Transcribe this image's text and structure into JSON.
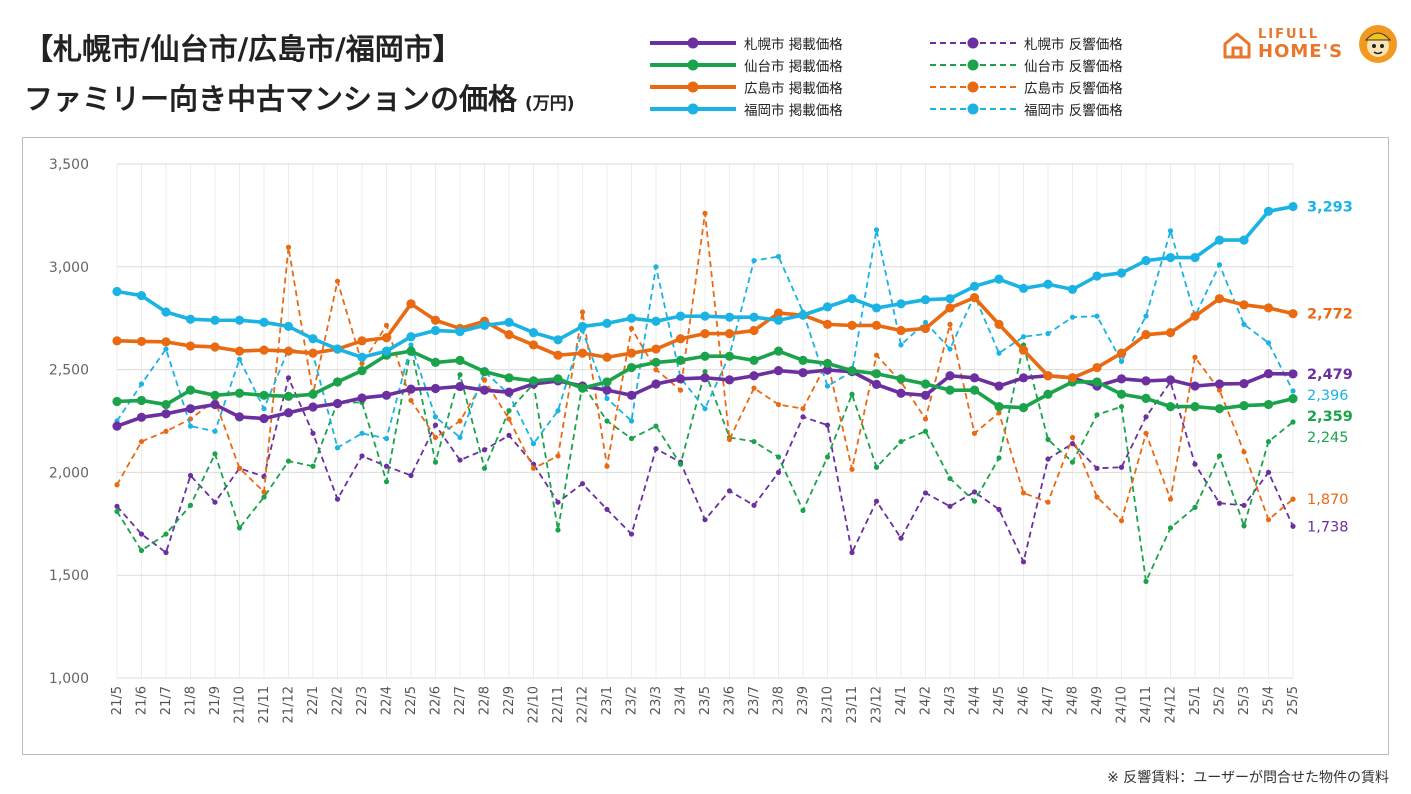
{
  "header": {
    "title_line1": "【札幌市/仙台市/広島市/福岡市】",
    "title_line2": "ファミリー向き中古マンションの価格",
    "unit": "(万円)"
  },
  "logo": {
    "line1": "LIFULL",
    "line2": "HOME'S",
    "icon": "house-icon"
  },
  "footnote": "※ 反響賃料：ユーザーが問合せた物件の賃料",
  "colors": {
    "sapporo": "#6b2fa0",
    "sendai": "#1aa34a",
    "hiroshima": "#ea6a12",
    "fukuoka": "#1ab3e3"
  },
  "legend": [
    {
      "label": "札幌市 掲載価格",
      "color": "#6b2fa0",
      "dashed": false
    },
    {
      "label": "仙台市 掲載価格",
      "color": "#1aa34a",
      "dashed": false
    },
    {
      "label": "広島市 掲載価格",
      "color": "#ea6a12",
      "dashed": false
    },
    {
      "label": "福岡市 掲載価格",
      "color": "#1ab3e3",
      "dashed": false
    },
    {
      "label": "札幌市 反響価格",
      "color": "#6b2fa0",
      "dashed": true
    },
    {
      "label": "仙台市 反響価格",
      "color": "#1aa34a",
      "dashed": true
    },
    {
      "label": "広島市 反響価格",
      "color": "#ea6a12",
      "dashed": true
    },
    {
      "label": "福岡市 反響価格",
      "color": "#1ab3e3",
      "dashed": true
    }
  ],
  "chart_data": {
    "type": "line",
    "title": "【札幌市/仙台市/広島市/福岡市】ファミリー向き中古マンションの価格",
    "ylabel": "(万円)",
    "ylim": [
      1000,
      3500
    ],
    "yticks": [
      1000,
      1500,
      2000,
      2500,
      3000,
      3500
    ],
    "ytick_labels": [
      "1,000",
      "1,500",
      "2,000",
      "2,500",
      "3,000",
      "3,500"
    ],
    "grid": true,
    "x": [
      "21/5",
      "21/6",
      "21/7",
      "21/8",
      "21/9",
      "21/10",
      "21/11",
      "21/12",
      "22/1",
      "22/2",
      "22/3",
      "22/4",
      "22/5",
      "22/6",
      "22/7",
      "22/8",
      "22/9",
      "22/10",
      "22/11",
      "22/12",
      "23/1",
      "23/2",
      "23/3",
      "23/4",
      "23/5",
      "23/6",
      "23/7",
      "23/8",
      "23/9",
      "23/10",
      "23/11",
      "23/12",
      "24/1",
      "24/2",
      "24/3",
      "24/4",
      "24/5",
      "24/6",
      "24/7",
      "24/8",
      "24/9",
      "24/10",
      "24/11",
      "24/12",
      "25/1",
      "25/2",
      "25/3",
      "25/4",
      "25/5"
    ],
    "series": [
      {
        "name": "札幌市 掲載価格",
        "color": "#6b2fa0",
        "dashed": false,
        "end_label": "2,479",
        "values": [
          2225,
          2268,
          2285,
          2310,
          2330,
          2270,
          2262,
          2290,
          2318,
          2335,
          2362,
          2375,
          2405,
          2408,
          2418,
          2400,
          2390,
          2430,
          2445,
          2420,
          2400,
          2375,
          2430,
          2455,
          2460,
          2450,
          2470,
          2495,
          2485,
          2498,
          2490,
          2428,
          2385,
          2375,
          2470,
          2460,
          2420,
          2460,
          2470,
          2460,
          2420,
          2455,
          2445,
          2450,
          2420,
          2430,
          2432,
          2480,
          2479
        ]
      },
      {
        "name": "仙台市 掲載価格",
        "color": "#1aa34a",
        "dashed": false,
        "end_label": "2,359",
        "values": [
          2345,
          2350,
          2330,
          2400,
          2375,
          2385,
          2375,
          2370,
          2380,
          2440,
          2495,
          2570,
          2590,
          2535,
          2545,
          2490,
          2460,
          2445,
          2455,
          2410,
          2440,
          2510,
          2535,
          2545,
          2565,
          2565,
          2545,
          2590,
          2545,
          2530,
          2495,
          2480,
          2455,
          2430,
          2400,
          2400,
          2320,
          2315,
          2380,
          2440,
          2440,
          2380,
          2360,
          2320,
          2320,
          2310,
          2325,
          2330,
          2359
        ]
      },
      {
        "name": "広島市 掲載価格",
        "color": "#ea6a12",
        "dashed": false,
        "end_label": "2,772",
        "values": [
          2640,
          2637,
          2635,
          2615,
          2610,
          2590,
          2595,
          2590,
          2580,
          2600,
          2640,
          2655,
          2820,
          2740,
          2700,
          2735,
          2670,
          2620,
          2570,
          2580,
          2560,
          2580,
          2600,
          2650,
          2675,
          2675,
          2690,
          2775,
          2765,
          2720,
          2715,
          2715,
          2690,
          2700,
          2800,
          2850,
          2720,
          2595,
          2470,
          2460,
          2510,
          2580,
          2670,
          2680,
          2760,
          2845,
          2815,
          2800,
          2772
        ]
      },
      {
        "name": "福岡市 掲載価格",
        "color": "#1ab3e3",
        "dashed": false,
        "end_label": "3,293",
        "values": [
          2880,
          2860,
          2780,
          2745,
          2740,
          2740,
          2730,
          2710,
          2650,
          2600,
          2560,
          2590,
          2660,
          2690,
          2685,
          2715,
          2730,
          2680,
          2645,
          2710,
          2725,
          2750,
          2735,
          2760,
          2760,
          2755,
          2755,
          2740,
          2765,
          2805,
          2845,
          2800,
          2820,
          2840,
          2845,
          2905,
          2940,
          2895,
          2915,
          2890,
          2955,
          2970,
          3030,
          3045,
          3045,
          3130,
          3130,
          3270,
          3293
        ]
      },
      {
        "name": "札幌市 反響価格",
        "color": "#6b2fa0",
        "dashed": true,
        "end_label": "1,738",
        "values": [
          1835,
          1700,
          1610,
          1985,
          1855,
          2020,
          1980,
          2460,
          2190,
          1870,
          2080,
          2030,
          1985,
          2230,
          2060,
          2110,
          2180,
          2040,
          1855,
          1945,
          1820,
          1700,
          2115,
          2050,
          1770,
          1910,
          1840,
          2000,
          2270,
          2230,
          1610,
          1860,
          1680,
          1900,
          1835,
          1905,
          1820,
          1565,
          2065,
          2140,
          2020,
          2025,
          2270,
          2440,
          2040,
          1850,
          1840,
          2000,
          1738
        ]
      },
      {
        "name": "仙台市 反響価格",
        "color": "#1aa34a",
        "dashed": true,
        "end_label": "2,245",
        "values": [
          1810,
          1620,
          1700,
          1840,
          2090,
          1730,
          1880,
          2055,
          2030,
          2340,
          2340,
          1955,
          2605,
          2050,
          2475,
          2020,
          2300,
          2430,
          1720,
          2430,
          2250,
          2165,
          2225,
          2040,
          2490,
          2170,
          2150,
          2075,
          1815,
          2075,
          2380,
          2025,
          2150,
          2200,
          1970,
          1860,
          2070,
          2620,
          2160,
          2050,
          2280,
          2320,
          1470,
          1730,
          1830,
          2080,
          1740,
          2150,
          2245
        ]
      },
      {
        "name": "広島市 反響価格",
        "color": "#ea6a12",
        "dashed": true,
        "end_label": "1,870",
        "values": [
          1940,
          2150,
          2200,
          2260,
          2350,
          2020,
          1905,
          3095,
          2380,
          2930,
          2530,
          2715,
          2350,
          2170,
          2250,
          2450,
          2260,
          2020,
          2080,
          2780,
          2030,
          2700,
          2500,
          2400,
          3260,
          2160,
          2410,
          2330,
          2310,
          2540,
          2015,
          2570,
          2440,
          2260,
          2720,
          2190,
          2290,
          1900,
          1855,
          2170,
          1880,
          1765,
          2190,
          1870,
          2560,
          2400,
          2100,
          1770,
          1870
        ]
      },
      {
        "name": "福岡市 反響価格",
        "color": "#1ab3e3",
        "dashed": true,
        "end_label": "2,396",
        "values": [
          2250,
          2430,
          2600,
          2225,
          2200,
          2550,
          2310,
          2600,
          2575,
          2120,
          2190,
          2165,
          2620,
          2270,
          2170,
          2490,
          2380,
          2140,
          2300,
          2690,
          2360,
          2250,
          3000,
          2460,
          2310,
          2570,
          3030,
          3050,
          2780,
          2420,
          2490,
          3180,
          2620,
          2730,
          2600,
          2860,
          2580,
          2660,
          2675,
          2755,
          2760,
          2540,
          2760,
          3175,
          2760,
          3010,
          2720,
          2630,
          2396
        ]
      }
    ]
  }
}
